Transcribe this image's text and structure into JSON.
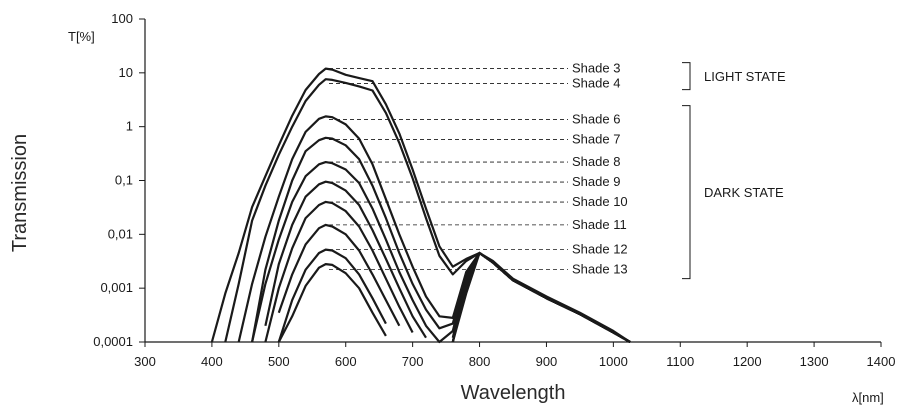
{
  "chart_data": {
    "type": "line",
    "x_scale": "linear",
    "y_scale": "log",
    "xlim": [
      300,
      1400
    ],
    "ylim": [
      0.0001,
      100
    ],
    "xlabel": "Wavelength",
    "x_unit": "λ[nm]",
    "ylabel": "Transmission",
    "y_unit": "T[%]",
    "x_ticks": [
      "300",
      "400",
      "500",
      "600",
      "700",
      "800",
      "900",
      "1000",
      "1100",
      "1200",
      "1300",
      "1400"
    ],
    "y_ticks": [
      "0,0001",
      "0,001",
      "0,01",
      "0,1",
      "1",
      "10",
      "100"
    ],
    "grid": false,
    "x": [
      400,
      420,
      440,
      460,
      480,
      500,
      520,
      540,
      560,
      570,
      580,
      600,
      620,
      640,
      660,
      680,
      700,
      720,
      740,
      760,
      780,
      800,
      820,
      850,
      900,
      950,
      1000,
      1025
    ],
    "series": [
      {
        "name": "Shade 3",
        "values": [
          0.0001,
          0.0008,
          0.0045,
          0.032,
          0.12,
          0.45,
          1.6,
          4.8,
          9.5,
          12,
          11.5,
          9.2,
          8.0,
          7.0,
          2.6,
          0.75,
          0.16,
          0.03,
          0.006,
          0.0025,
          0.0035,
          0.0045,
          0.0032,
          0.0015,
          0.0007,
          0.00035,
          0.00016,
          0.0001
        ]
      },
      {
        "name": "Shade 4",
        "values": [
          null,
          0.0001,
          0.0012,
          0.018,
          0.08,
          0.3,
          1.0,
          3.0,
          6.0,
          7.6,
          7.4,
          6.5,
          5.6,
          4.7,
          1.8,
          0.5,
          0.11,
          0.02,
          0.004,
          0.0018,
          0.0032,
          0.0045,
          0.003,
          0.0014,
          0.00065,
          0.00033,
          0.00015,
          0.0001
        ]
      },
      {
        "name": "Shade 6",
        "values": [
          null,
          null,
          0.0001,
          0.0012,
          0.009,
          0.05,
          0.25,
          0.8,
          1.4,
          1.55,
          1.5,
          1.1,
          0.6,
          0.2,
          0.045,
          0.01,
          0.0025,
          0.0007,
          0.0003,
          0.00028,
          0.002,
          0.0045,
          0.003,
          0.0014,
          0.00065,
          0.00033,
          0.00015,
          0.0001
        ]
      },
      {
        "name": "Shade 7",
        "values": [
          null,
          null,
          null,
          0.0001,
          0.0022,
          0.018,
          0.1,
          0.35,
          0.56,
          0.62,
          0.6,
          0.45,
          0.25,
          0.08,
          0.02,
          0.0045,
          0.0012,
          0.0004,
          0.00018,
          0.00022,
          0.0018,
          0.0045,
          0.003,
          0.0014,
          0.00065,
          0.00033,
          0.00015,
          0.0001
        ]
      },
      {
        "name": "Shade 8",
        "values": [
          null,
          null,
          null,
          0.0001,
          0.0012,
          0.008,
          0.04,
          0.12,
          0.2,
          0.22,
          0.21,
          0.16,
          0.09,
          0.03,
          0.008,
          0.002,
          0.0006,
          0.0002,
          0.0001,
          0.00016,
          0.0016,
          0.0045,
          0.003,
          0.0014,
          0.00065,
          0.00033,
          0.00015,
          0.0001
        ]
      },
      {
        "name": "Shade 9",
        "values": [
          null,
          null,
          null,
          null,
          0.0002,
          0.0028,
          0.015,
          0.05,
          0.085,
          0.095,
          0.09,
          0.065,
          0.035,
          0.012,
          0.0035,
          0.001,
          0.0003,
          0.00012,
          null,
          0.00012,
          0.0015,
          0.0045,
          0.003,
          0.0014,
          0.00065,
          0.00033,
          0.00015,
          0.0001
        ]
      },
      {
        "name": "Shade 10",
        "values": [
          null,
          null,
          null,
          null,
          0.0001,
          0.001,
          0.0055,
          0.02,
          0.035,
          0.04,
          0.038,
          0.027,
          0.014,
          0.005,
          0.0015,
          0.00045,
          0.00015,
          null,
          null,
          0.0001,
          0.0014,
          0.0045,
          0.003,
          0.0014,
          0.00065,
          0.00033,
          0.00015,
          0.0001
        ]
      },
      {
        "name": "Shade 11",
        "values": [
          null,
          null,
          null,
          null,
          null,
          0.00035,
          0.0018,
          0.0065,
          0.013,
          0.015,
          0.014,
          0.01,
          0.005,
          0.0018,
          0.0006,
          0.0002,
          null,
          null,
          null,
          0.0001,
          0.0012,
          0.0045,
          0.003,
          0.0014,
          0.00065,
          0.00033,
          0.00015,
          0.0001
        ]
      },
      {
        "name": "Shade 12",
        "values": [
          null,
          null,
          null,
          null,
          null,
          0.0001,
          0.0006,
          0.0022,
          0.0045,
          0.0052,
          0.005,
          0.0036,
          0.0018,
          0.00065,
          0.00022,
          null,
          null,
          null,
          null,
          0.0001,
          0.001,
          0.0045,
          0.003,
          0.0014,
          0.00065,
          0.00033,
          0.00015,
          0.0001
        ]
      },
      {
        "name": "Shade 13",
        "values": [
          null,
          null,
          null,
          null,
          null,
          0.0001,
          0.0003,
          0.0011,
          0.0024,
          0.0028,
          0.0027,
          0.0019,
          0.001,
          0.00035,
          0.00013,
          null,
          null,
          null,
          null,
          0.0001,
          0.0008,
          0.0045,
          0.003,
          0.0014,
          0.00065,
          0.00033,
          0.00015,
          0.0001
        ]
      }
    ],
    "annotations": {
      "light_state": {
        "label": "LIGHT STATE",
        "shades": [
          "Shade 3",
          "Shade 4"
        ]
      },
      "dark_state": {
        "label": "DARK STATE",
        "shades": [
          "Shade 6",
          "Shade 7",
          "Shade 8",
          "Shade 9",
          "Shade 10",
          "Shade 11",
          "Shade 12",
          "Shade 13"
        ]
      }
    }
  }
}
